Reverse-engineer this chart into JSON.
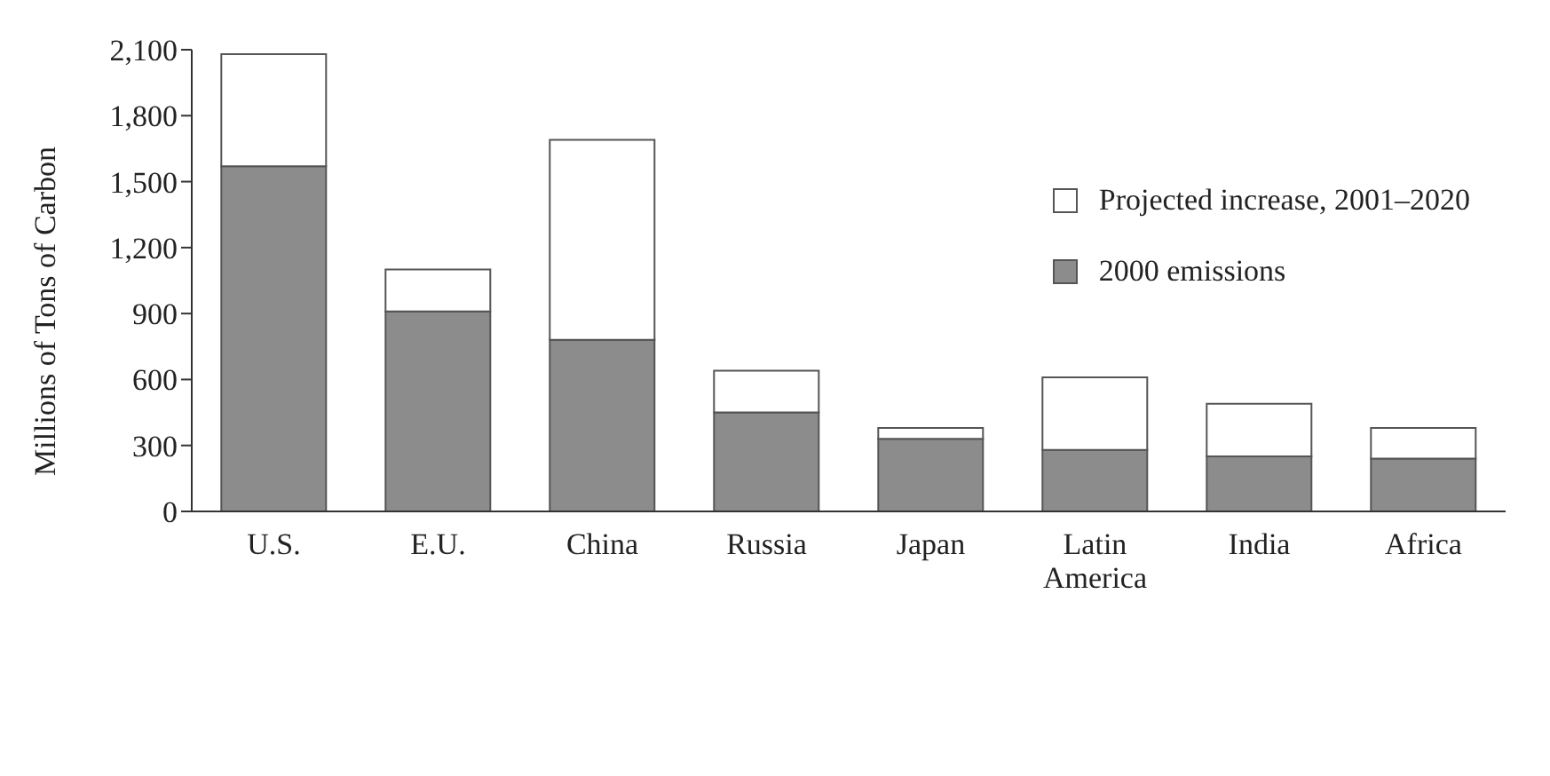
{
  "chart_data": {
    "type": "bar",
    "stacked": true,
    "ylabel": "Millions of Tons of Carbon",
    "categories": [
      "U.S.",
      "E.U.",
      "China",
      "Russia",
      "Japan",
      "Latin America",
      "India",
      "Africa"
    ],
    "series": [
      {
        "name": "2000 emissions",
        "color": "#8c8c8c",
        "values": [
          1570,
          910,
          780,
          450,
          330,
          280,
          250,
          240
        ]
      },
      {
        "name": "Projected increase, 2001–2020",
        "color": "#ffffff",
        "values": [
          510,
          190,
          910,
          190,
          50,
          330,
          240,
          140
        ]
      }
    ],
    "ylim": [
      0,
      2100
    ],
    "yticks": [
      0,
      {
        "value": 300,
        "label": "300"
      },
      {
        "value": 600,
        "label": "600"
      },
      {
        "value": 900,
        "label": "900"
      },
      {
        "value": 1200,
        "label": "1,200"
      },
      {
        "value": 1500,
        "label": "1,500"
      },
      {
        "value": 1800,
        "label": "1,800"
      },
      {
        "value": 2100,
        "label": "2,100"
      }
    ],
    "grid": false,
    "legend": "top right"
  }
}
